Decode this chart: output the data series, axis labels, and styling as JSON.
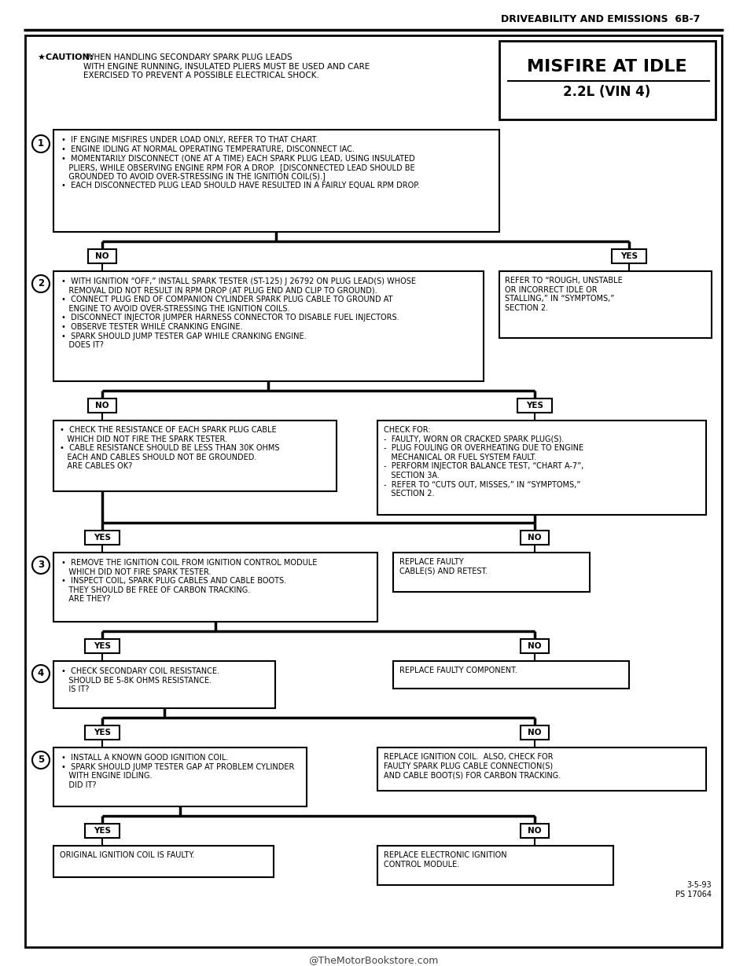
{
  "page_header": "DRIVEABILITY AND EMISSIONS  6B-7",
  "title": "MISFIRE AT IDLE",
  "subtitle": "2.2L (VIN 4)",
  "footer": "@TheMotorBookstore.com",
  "caution_bold": "★CAUTION: ",
  "caution_rest": " WHEN HANDLING SECONDARY SPARK PLUG LEADS\nWITH ENGINE RUNNING, INSULATED PLIERS MUST BE USED AND CARE\nEXERCISED TO PREVENT A POSSIBLE ELECTRICAL SHOCK.",
  "date_code": "3-5-93\nPS 17064",
  "step1_text": "•  IF ENGINE MISFIRES UNDER LOAD ONLY, REFER TO THAT CHART.\n•  ENGINE IDLING AT NORMAL OPERATING TEMPERATURE, DISCONNECT IAC.\n•  MOMENTARILY DISCONNECT (ONE AT A TIME) EACH SPARK PLUG LEAD, USING INSULATED\n   PLIERS, WHILE OBSERVING ENGINE RPM FOR A DROP.  [DISCONNECTED LEAD SHOULD BE\n   GROUNDED TO AVOID OVER-STRESSING IN THE IGNITION COIL(S).]\n•  EACH DISCONNECTED PLUG LEAD SHOULD HAVE RESULTED IN A FAIRLY EQUAL RPM DROP.",
  "step2_text": "•  WITH IGNITION “OFF,” INSTALL SPARK TESTER (ST-125) J 26792 ON PLUG LEAD(S) WHOSE\n   REMOVAL DID NOT RESULT IN RPM DROP (AT PLUG END AND CLIP TO GROUND).\n•  CONNECT PLUG END OF COMPANION CYLINDER SPARK PLUG CABLE TO GROUND AT\n   ENGINE TO AVOID OVER-STRESSING THE IGNITION COILS.\n•  DISCONNECT INJECTOR JUMPER HARNESS CONNECTOR TO DISABLE FUEL INJECTORS.\n•  OBSERVE TESTER WHILE CRANKING ENGINE.\n•  SPARK SHOULD JUMP TESTER GAP WHILE CRANKING ENGINE.\n   DOES IT?",
  "step3_text": "•  REMOVE THE IGNITION COIL FROM IGNITION CONTROL MODULE\n   WHICH DID NOT FIRE SPARK TESTER.\n•  INSPECT COIL, SPARK PLUG CABLES AND CABLE BOOTS.\n   THEY SHOULD BE FREE OF CARBON TRACKING.\n   ARE THEY?",
  "step4_text": "•  CHECK SECONDARY COIL RESISTANCE.\n   SHOULD BE 5-8K OHMS RESISTANCE.\n   IS IT?",
  "step5_text": "•  INSTALL A KNOWN GOOD IGNITION COIL.\n•  SPARK SHOULD JUMP TESTER GAP AT PROBLEM CYLINDER\n   WITH ENGINE IDLING.\n   DID IT?",
  "yes1_text": "REFER TO “ROUGH, UNSTABLE\nOR INCORRECT IDLE OR\nSTALLING,” IN “SYMPTOMS,”\nSECTION 2.",
  "yes2_text": "CHECK FOR:\n-  FAULTY, WORN OR CRACKED SPARK PLUG(S).\n-  PLUG FOULING OR OVERHEATING DUE TO ENGINE\n   MECHANICAL OR FUEL SYSTEM FAULT.\n-  PERFORM INJECTOR BALANCE TEST, “CHART A-7”,\n   SECTION 3A.\n-  REFER TO “CUTS OUT, MISSES,” IN “SYMPTOMS,”\n   SECTION 2.",
  "no2_text": "•  CHECK THE RESISTANCE OF EACH SPARK PLUG CABLE\n   WHICH DID NOT FIRE THE SPARK TESTER.\n•  CABLE RESISTANCE SHOULD BE LESS THAN 30K OHMS\n   EACH AND CABLES SHOULD NOT BE GROUNDED.\n   ARE CABLES OK?",
  "no3_text": "REPLACE FAULTY\nCABLE(S) AND RETEST.",
  "no4_text": "REPLACE FAULTY COMPONENT.",
  "no5_text": "REPLACE IGNITION COIL.  ALSO, CHECK FOR\nFAULTY SPARK PLUG CABLE CONNECTION(S)\nAND CABLE BOOT(S) FOR CARBON TRACKING.",
  "final_yes_text": "ORIGINAL IGNITION COIL IS FAULTY.",
  "final_no_text": "REPLACE ELECTRONIC IGNITION\nCONTROL MODULE."
}
